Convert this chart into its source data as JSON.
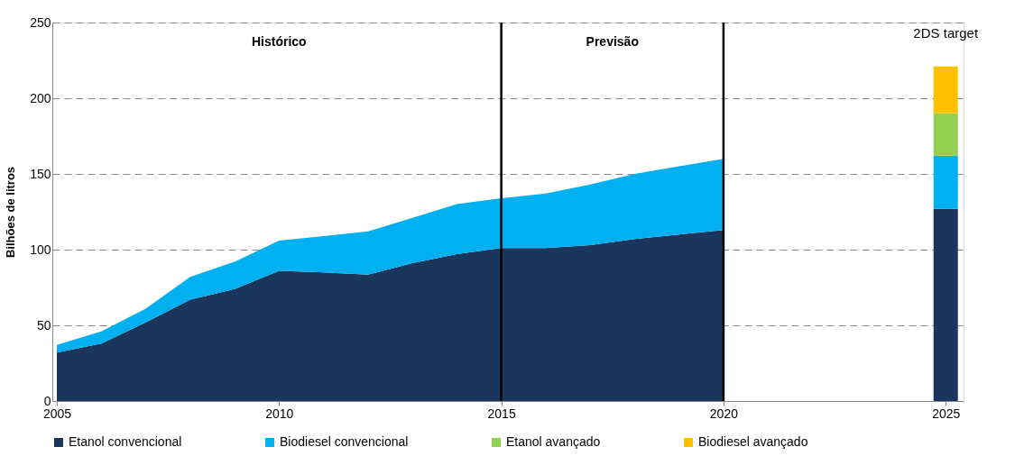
{
  "chart_data": {
    "type": "area",
    "ylabel": "Bilhões de litros",
    "x": [
      2005,
      2006,
      2007,
      2008,
      2009,
      2010,
      2011,
      2012,
      2013,
      2014,
      2015,
      2016,
      2017,
      2018,
      2019,
      2020,
      2025
    ],
    "series": [
      {
        "name": "Etanol convencional",
        "color": "#1a365d",
        "values": [
          32,
          38,
          52,
          67,
          74,
          86,
          85,
          83.5,
          91,
          97,
          101,
          101,
          103,
          107,
          110,
          113,
          null
        ]
      },
      {
        "name": "Biodiesel convencional",
        "color": "#00b0f0",
        "values": [
          5,
          8,
          9,
          15,
          18,
          20,
          24,
          28.5,
          30,
          33,
          33,
          36,
          40,
          43,
          45,
          47,
          null
        ]
      },
      {
        "color": "#1a365d",
        "type": "bar",
        "values": [
          null,
          null,
          null,
          null,
          null,
          null,
          null,
          null,
          null,
          null,
          null,
          null,
          null,
          null,
          null,
          null,
          127
        ]
      },
      {
        "color": "#00b0f0",
        "type": "bar",
        "values": [
          null,
          null,
          null,
          null,
          null,
          null,
          null,
          null,
          null,
          null,
          null,
          null,
          null,
          null,
          null,
          null,
          35
        ]
      },
      {
        "name": "Etanol avançado",
        "color": "#92d050",
        "type": "bar",
        "values": [
          null,
          null,
          null,
          null,
          null,
          null,
          null,
          null,
          null,
          null,
          null,
          null,
          null,
          null,
          null,
          null,
          28
        ]
      },
      {
        "name": "Biodiesel avançado",
        "color": "#ffc000",
        "type": "bar",
        "values": [
          null,
          null,
          null,
          null,
          null,
          null,
          null,
          null,
          null,
          null,
          null,
          null,
          null,
          null,
          null,
          null,
          31
        ]
      }
    ],
    "stacked": true,
    "xlim": [
      2005,
      2025.3
    ],
    "xticks": [
      2005,
      2010,
      2015,
      2020,
      2025
    ],
    "ylim": [
      0,
      250
    ],
    "yticks": [
      0,
      50,
      100,
      150,
      200,
      250
    ],
    "grid": "y",
    "legend": "bottom",
    "ref_lines": [
      {
        "axis": "x",
        "value": 2015,
        "color": "#000000"
      },
      {
        "axis": "x",
        "value": 2020,
        "color": "#000000"
      }
    ],
    "annotations": [
      "Histórico",
      "Previsão",
      "2DS target"
    ]
  }
}
